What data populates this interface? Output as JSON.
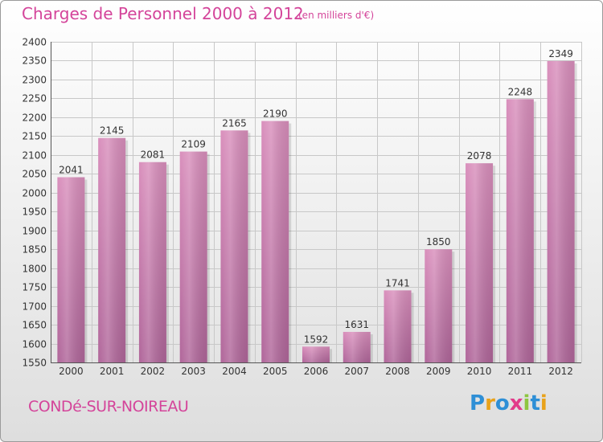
{
  "header": {
    "title": "Charges de Personnel 2000 à 2012",
    "unit": "(en milliers d'€)"
  },
  "footer": {
    "commune": "CONDé-SUR-NOIREAU",
    "logo": {
      "letters": [
        "P",
        "r",
        "o",
        "x",
        "i",
        "t",
        "i"
      ],
      "colors": [
        "#2e8fd6",
        "#e9a21a",
        "#2e8fd6",
        "#e23b8a",
        "#8ec63f",
        "#2e8fd6",
        "#e9a21a"
      ]
    }
  },
  "colors": {
    "bar": "#d98fbc",
    "bar_dark": "#b0669a",
    "title": "#d4449a",
    "grid": "#c8c8c8"
  },
  "chart_data": {
    "type": "bar",
    "title": "Charges de Personnel 2000 à 2012",
    "subtitle": "(en milliers d'€)",
    "categories": [
      "2000",
      "2001",
      "2002",
      "2003",
      "2004",
      "2005",
      "2006",
      "2007",
      "2008",
      "2009",
      "2010",
      "2011",
      "2012"
    ],
    "values": [
      2041,
      2145,
      2081,
      2109,
      2165,
      2190,
      1592,
      1631,
      1741,
      1850,
      2078,
      2248,
      2349
    ],
    "ylim": [
      1550,
      2400
    ],
    "yticks": [
      1550,
      1600,
      1650,
      1700,
      1750,
      1800,
      1850,
      1900,
      1950,
      2000,
      2050,
      2100,
      2150,
      2200,
      2250,
      2300,
      2350,
      2400
    ],
    "grid": true,
    "data_labels": true
  }
}
